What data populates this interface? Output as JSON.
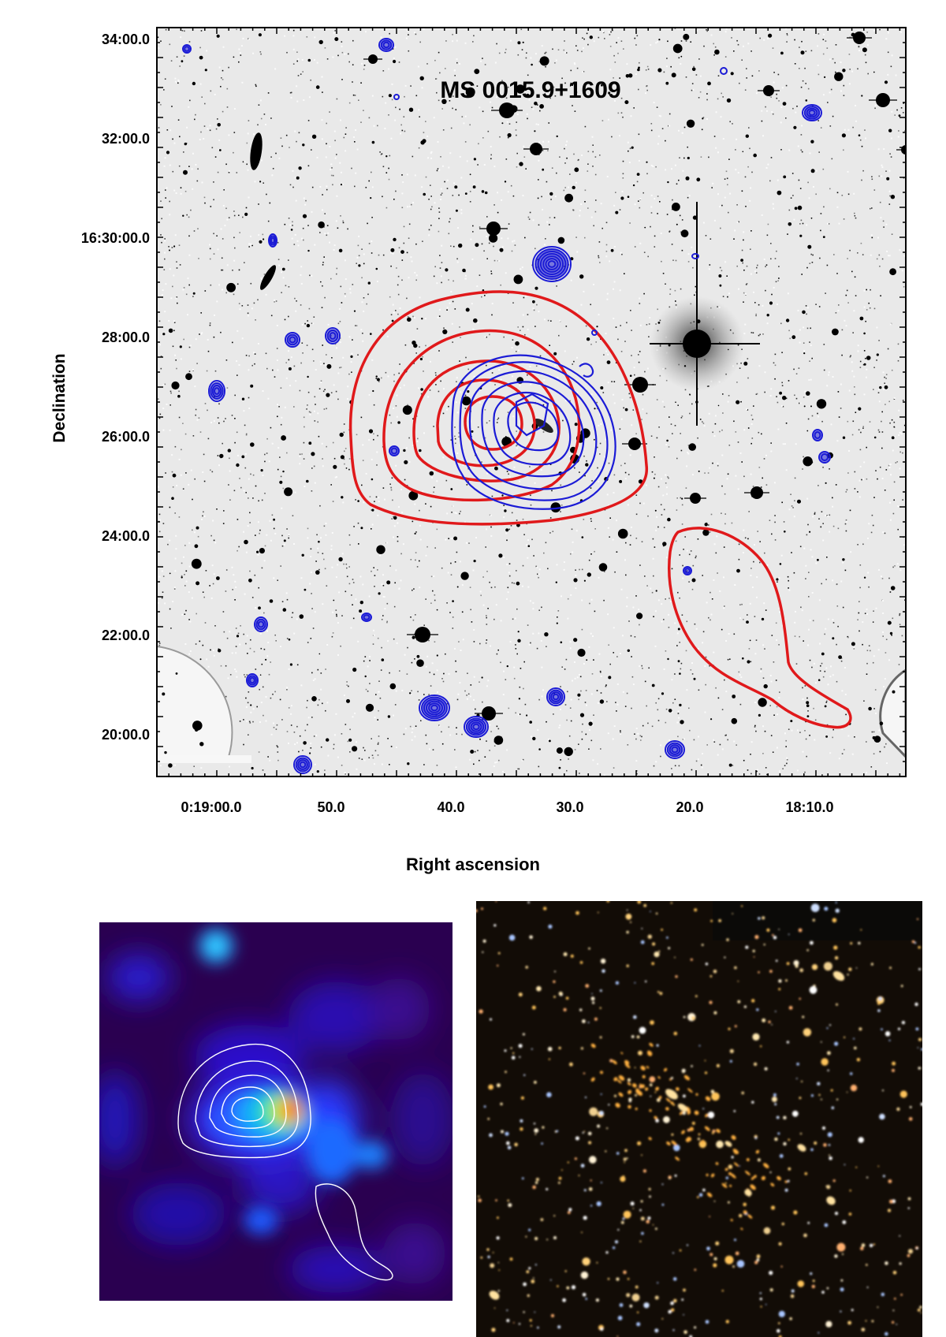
{
  "figure": {
    "title": "MS 0015.9+1609",
    "xlabel": "Right ascension",
    "ylabel": "Declination",
    "x_ticks": [
      "0:19:00.0",
      "50.0",
      "40.0",
      "30.0",
      "20.0",
      "18:10.0"
    ],
    "y_ticks": [
      "34:00.0",
      "32:00.0",
      "16:30:00.0",
      "28:00.0",
      "26:00.0",
      "24:00.0",
      "22:00.0",
      "20:00.0"
    ],
    "contour_colors": {
      "radio": "#e0191b",
      "xray": "#1b1bd6"
    },
    "panels": [
      {
        "name": "optical-overlay",
        "background": "grayscale-sky"
      },
      {
        "name": "heatmap-with-white-contours",
        "background": "#2a0050"
      },
      {
        "name": "color-optical",
        "background": "#120c06"
      }
    ]
  }
}
